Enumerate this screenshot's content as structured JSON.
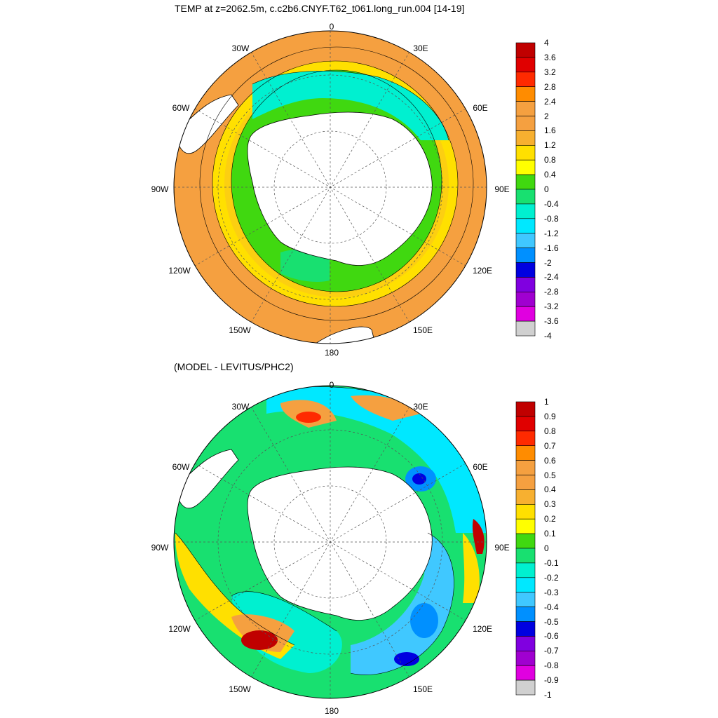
{
  "panels": [
    {
      "title": "TEMP at z=2062.5m, c.c2b6.CNYF.T62_t061.long_run.004 [14-19]",
      "lon_labels": [
        "0",
        "30E",
        "60E",
        "90E",
        "120E",
        "150E",
        "180",
        "150W",
        "120W",
        "90W",
        "60W",
        "30W"
      ],
      "colorbar": {
        "labels": [
          "4",
          "3.6",
          "3.2",
          "2.8",
          "2.4",
          "2",
          "1.6",
          "1.2",
          "0.8",
          "0.4",
          "0",
          "-0.4",
          "-0.8",
          "-1.2",
          "-1.6",
          "-2",
          "-2.4",
          "-2.8",
          "-3.2",
          "-3.6",
          "-4"
        ],
        "colors": [
          "#c00000",
          "#e00000",
          "#ff2a00",
          "#ff8c00",
          "#f5a040",
          "#f5a040",
          "#f7b030",
          "#ffe000",
          "#ffff00",
          "#40d810",
          "#18e070",
          "#00f0d0",
          "#00e8ff",
          "#40c8ff",
          "#0090ff",
          "#0000e0",
          "#8000e0",
          "#a000d0",
          "#e000e0",
          "#d0d0d0",
          "#707070"
        ]
      }
    },
    {
      "title": "(MODEL - LEVITUS/PHC2)",
      "lon_labels": [
        "0",
        "30E",
        "60E",
        "90E",
        "120E",
        "150E",
        "180",
        "150W",
        "120W",
        "90W",
        "60W",
        "30W"
      ],
      "colorbar": {
        "labels": [
          "1",
          "0.9",
          "0.8",
          "0.7",
          "0.6",
          "0.5",
          "0.4",
          "0.3",
          "0.2",
          "0.1",
          "0",
          "-0.1",
          "-0.2",
          "-0.3",
          "-0.4",
          "-0.5",
          "-0.6",
          "-0.7",
          "-0.8",
          "-0.9",
          "-1"
        ],
        "colors": [
          "#c00000",
          "#e00000",
          "#ff2a00",
          "#ff8c00",
          "#f5a040",
          "#f5a040",
          "#f7b030",
          "#ffe000",
          "#ffff00",
          "#40d810",
          "#18e070",
          "#00f0d0",
          "#00e8ff",
          "#40c8ff",
          "#0090ff",
          "#0000e0",
          "#8000e0",
          "#a000d0",
          "#e000e0",
          "#d0d0d0",
          "#707070"
        ]
      }
    }
  ],
  "map_colors": {
    "land": "#ffffff",
    "coast": "#000000",
    "grid": "#555555",
    "warm_outer": "#f5a040",
    "yellow": "#ffff00",
    "green": "#40d810",
    "green2": "#18e070",
    "cyan": "#00f0d0",
    "blue": "#0090ff",
    "deep_blue": "#0000e0",
    "red": "#c00000"
  }
}
